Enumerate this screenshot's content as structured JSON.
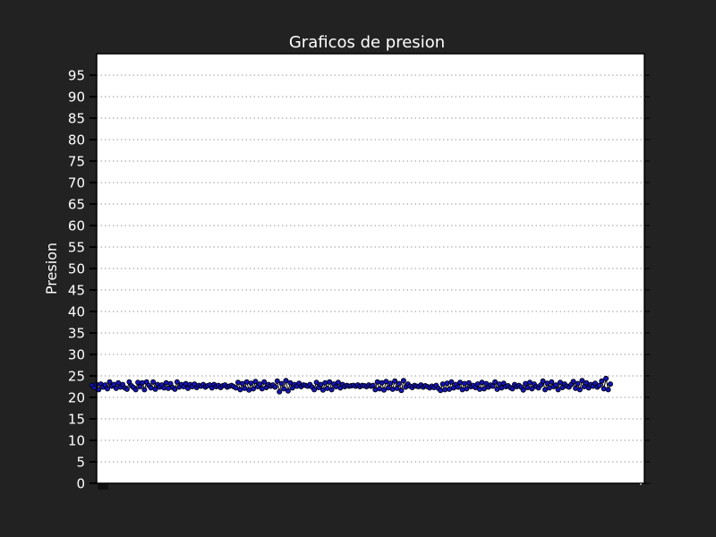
{
  "chart_data": {
    "type": "line",
    "title": "Graficos de presion",
    "xlabel": "",
    "ylabel": "Presion",
    "ylim": [
      0,
      100
    ],
    "yticks": [
      0,
      5,
      10,
      15,
      20,
      25,
      30,
      35,
      40,
      45,
      50,
      55,
      60,
      65,
      70,
      75,
      80,
      85,
      90,
      95
    ],
    "grid": true,
    "legend": "none",
    "colors": {
      "background": "#222222",
      "plot_background": "#ffffff",
      "series_line": "#000000",
      "series_marker": "#1414b4",
      "grid": "#999999"
    },
    "series": [
      {
        "values": [
          22.8,
          22.3,
          23.0,
          21.8,
          23.1,
          22.4,
          22.9,
          22.0,
          23.6,
          22.6,
          23.0,
          22.1,
          23.4,
          22.4,
          23.0,
          22.2,
          21.9,
          23.6,
          22.7,
          22.3,
          21.8,
          23.5,
          22.5,
          23.4,
          21.8,
          23.6,
          22.8,
          22.2,
          23.6,
          21.9,
          23.0,
          22.4,
          22.9,
          22.2,
          23.4,
          22.1,
          23.2,
          22.3,
          21.9,
          23.6,
          22.4,
          23.0,
          22.5,
          23.2,
          22.1,
          23.0,
          22.5,
          23.1,
          22.3,
          22.8,
          22.6,
          23.0,
          22.4,
          22.7,
          22.9,
          22.2,
          23.0,
          22.5,
          22.8,
          22.3,
          22.7,
          22.9,
          22.4,
          22.6,
          22.8,
          22.5,
          22.2,
          23.5,
          21.8,
          23.2,
          22.1,
          23.6,
          21.7,
          23.3,
          22.0,
          23.7,
          22.5,
          23.1,
          22.0,
          23.6,
          22.3,
          23.0,
          22.6,
          22.9,
          22.4,
          23.8,
          21.3,
          23.2,
          22.0,
          23.9,
          21.5,
          23.4,
          22.2,
          23.0,
          22.6,
          23.3,
          22.5,
          22.9,
          22.8,
          22.6,
          23.0,
          22.4,
          21.8,
          23.5,
          22.3,
          23.0,
          21.7,
          23.4,
          22.1,
          23.6,
          21.8,
          23.1,
          22.5,
          23.5,
          22.2,
          23.0,
          22.5,
          22.8,
          22.6,
          22.7,
          22.8,
          22.6,
          22.9,
          22.5,
          22.8,
          22.7,
          22.5,
          22.9,
          22.6,
          22.8,
          21.8,
          23.6,
          22.0,
          23.4,
          21.7,
          23.7,
          22.2,
          23.3,
          21.9,
          23.8,
          22.1,
          23.2,
          21.6,
          23.9,
          22.4,
          23.1,
          22.6,
          22.3,
          22.8,
          22.6,
          22.5,
          22.9,
          22.4,
          22.7,
          22.5,
          22.2,
          22.6,
          22.3,
          22.8,
          22.1,
          21.6,
          23.1,
          21.8,
          23.3,
          21.9,
          23.6,
          22.2,
          23.0,
          22.4,
          23.5,
          21.8,
          23.2,
          22.0,
          23.4,
          22.5,
          22.8,
          22.3,
          23.1,
          21.9,
          23.5,
          22.0,
          23.2,
          22.4,
          22.9,
          22.6,
          23.6,
          21.9,
          23.1,
          22.2,
          23.3,
          22.5,
          22.7,
          22.3,
          22.0,
          23.0,
          22.5,
          22.8,
          22.4,
          21.7,
          23.2,
          22.3,
          23.5,
          22.0,
          23.1,
          22.5,
          22.2,
          22.9,
          23.8,
          21.8,
          23.3,
          22.2,
          23.6,
          22.5,
          22.9,
          21.8,
          23.5,
          22.3,
          23.1,
          22.6,
          22.4,
          23.0,
          23.7,
          22.1,
          23.2,
          21.8,
          23.9,
          22.5,
          23.4,
          22.2,
          23.0,
          22.6,
          23.3,
          22.4,
          22.8,
          23.8,
          22.0,
          24.4,
          21.8,
          23.1
        ]
      }
    ]
  }
}
